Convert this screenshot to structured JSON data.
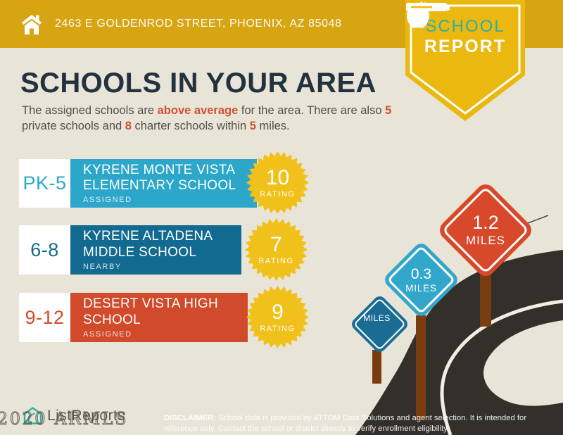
{
  "header": {
    "address": "2463 E GOLDENROD STREET, PHOENIX, AZ 85048",
    "badge": {
      "line1": "SCHOOL",
      "line2": "REPORT"
    }
  },
  "title": "SCHOOLS IN YOUR AREA",
  "intro": {
    "p1": "The assigned schools are ",
    "h1": "above average",
    "p2": " for the area. There are also ",
    "h2": "5",
    "p3": " private schools and ",
    "h3": "8",
    "p4": " charter schools within ",
    "h4": "5",
    "p5": " miles."
  },
  "schools": [
    {
      "grades": "PK-5",
      "name": "KYRENE MONTE VISTA ELEMENTARY SCHOOL",
      "status": "ASSIGNED",
      "rating": "10",
      "rating_label": "RATING",
      "color": "#2CA7CA"
    },
    {
      "grades": "6-8",
      "name": "KYRENE ALTADENA MIDDLE SCHOOL",
      "status": "NEARBY",
      "rating": "7",
      "rating_label": "RATING",
      "color": "#136A90"
    },
    {
      "grades": "9-12",
      "name": "DESERT VISTA HIGH SCHOOL",
      "status": "ASSIGNED",
      "rating": "9",
      "rating_label": "RATING",
      "color": "#D14A2B"
    }
  ],
  "signs": [
    {
      "unit": "MILES",
      "color": "#1A6C94"
    },
    {
      "value": "0.3",
      "unit": "MILES",
      "color": "#33A6CB"
    },
    {
      "value": "1.2",
      "unit": "MILES",
      "color": "#D8492B"
    }
  ],
  "footer": {
    "brand": "ListReports",
    "watermark": "2020 ARMLS",
    "disclaimer_label": "DISCLAIMER:",
    "disclaimer_text": " School data is provided by ATTOM Data Solutions and agent selection. It is intended for reference only. Contact the school or district directly to verify enrollment eligibility."
  },
  "icons": {
    "topbar": "house-icon",
    "badge": "apple-and-book-icon",
    "logo": "house-outline-icon"
  },
  "colors": {
    "topbar_gold": "#D7A412",
    "badge_gold": "#EAB80F",
    "burst_yellow": "#F1C11B",
    "background_cream": "#E9E4D8",
    "heading_navy": "#22333F",
    "accent_orange": "#D4502C",
    "body_text": "#54504A",
    "road_dark": "#332F2B",
    "post_brown": "#7A3D10",
    "brand_teal": "#2FAFA0"
  }
}
